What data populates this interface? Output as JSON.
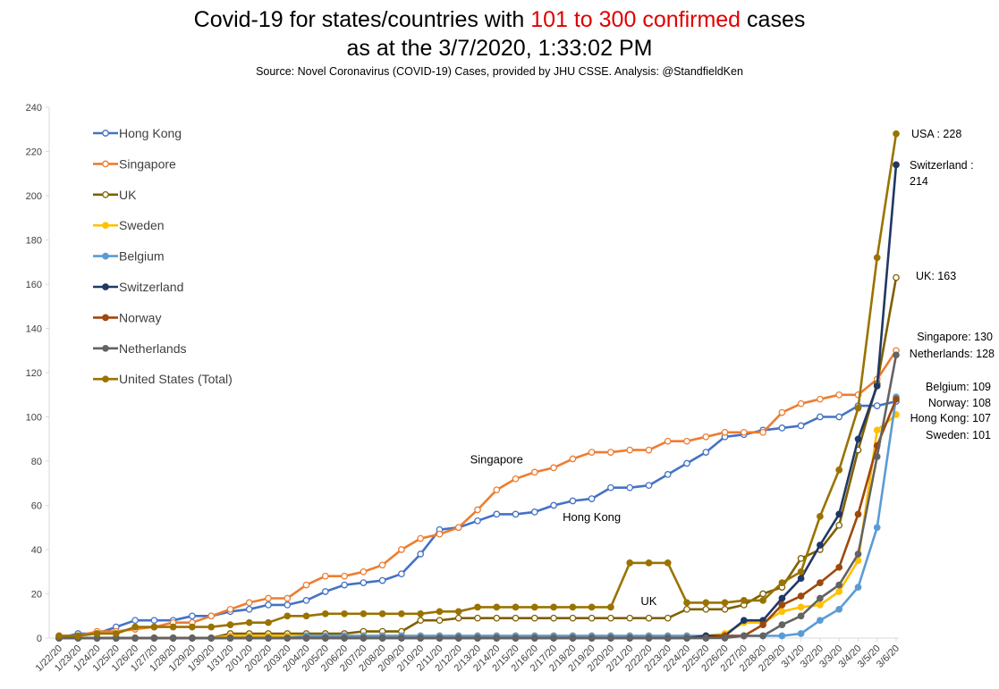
{
  "chart_data": {
    "type": "line",
    "title": {
      "line1_prefix": "Covid-19 for states/countries with ",
      "line1_highlight": "101 to 300 confirmed",
      "line1_suffix": " cases",
      "line2": "as at the 3/7/2020, 1:33:02 PM",
      "highlight_color": "#e00000"
    },
    "subtitle": "Source: Novel Coronavirus (COVID-19) Cases, provided by JHU CSSE.  Analysis: @StandfieldKen",
    "xlabel": "",
    "ylabel": "",
    "ylim": [
      0,
      240
    ],
    "yticks": [
      0,
      20,
      40,
      60,
      80,
      100,
      120,
      140,
      160,
      180,
      200,
      220,
      240
    ],
    "grid": false,
    "legend_position": "top-left",
    "categories": [
      "1/22/20",
      "1/23/20",
      "1/24/20",
      "1/25/20",
      "1/26/20",
      "1/27/20",
      "1/28/20",
      "1/29/20",
      "1/30/20",
      "1/31/20",
      "2/01/20",
      "2/02/20",
      "2/03/20",
      "2/04/20",
      "2/05/20",
      "2/06/20",
      "2/07/20",
      "2/08/20",
      "2/09/20",
      "2/10/20",
      "2/11/20",
      "2/12/20",
      "2/13/20",
      "2/14/20",
      "2/15/20",
      "2/16/20",
      "2/17/20",
      "2/18/20",
      "2/19/20",
      "2/20/20",
      "2/21/20",
      "2/22/20",
      "2/23/20",
      "2/24/20",
      "2/25/20",
      "2/26/20",
      "2/27/20",
      "2/28/20",
      "2/29/20",
      "3/1/20",
      "3/2/20",
      "3/3/20",
      "3/4/20",
      "3/5/20",
      "3/6/20"
    ],
    "series": [
      {
        "name": "Hong Kong",
        "color": "#4472c4",
        "marker": "hollow",
        "values": [
          0,
          2,
          2,
          5,
          8,
          8,
          8,
          10,
          10,
          12,
          13,
          15,
          15,
          17,
          21,
          24,
          25,
          26,
          29,
          38,
          49,
          50,
          53,
          56,
          56,
          57,
          60,
          62,
          63,
          68,
          68,
          69,
          74,
          79,
          84,
          91,
          92,
          94,
          95,
          96,
          100,
          100,
          105,
          105,
          107
        ]
      },
      {
        "name": "Singapore",
        "color": "#ed7d31",
        "marker": "hollow",
        "values": [
          1,
          1,
          3,
          3,
          4,
          5,
          7,
          7,
          10,
          13,
          16,
          18,
          18,
          24,
          28,
          28,
          30,
          33,
          40,
          45,
          47,
          50,
          58,
          67,
          72,
          75,
          77,
          81,
          84,
          84,
          85,
          85,
          89,
          89,
          91,
          93,
          93,
          93,
          102,
          106,
          108,
          110,
          110,
          117,
          130
        ]
      },
      {
        "name": "UK",
        "color": "#7f6000",
        "marker": "hollow",
        "values": [
          0,
          0,
          0,
          0,
          0,
          0,
          0,
          0,
          0,
          2,
          2,
          2,
          2,
          2,
          2,
          2,
          3,
          3,
          3,
          8,
          8,
          9,
          9,
          9,
          9,
          9,
          9,
          9,
          9,
          9,
          9,
          9,
          9,
          13,
          13,
          13,
          15,
          20,
          23,
          36,
          40,
          51,
          85,
          115,
          163
        ]
      },
      {
        "name": "Sweden",
        "color": "#ffc000",
        "marker": "filled",
        "values": [
          0,
          0,
          0,
          0,
          0,
          0,
          0,
          0,
          0,
          1,
          1,
          1,
          1,
          1,
          1,
          1,
          1,
          1,
          1,
          1,
          1,
          1,
          1,
          1,
          1,
          1,
          1,
          1,
          1,
          1,
          1,
          1,
          1,
          1,
          1,
          2,
          7,
          7,
          12,
          14,
          15,
          21,
          35,
          94,
          101
        ]
      },
      {
        "name": "Belgium",
        "color": "#5b9bd5",
        "marker": "filled",
        "values": [
          0,
          0,
          0,
          0,
          0,
          0,
          0,
          0,
          0,
          0,
          0,
          0,
          0,
          1,
          1,
          1,
          1,
          1,
          1,
          1,
          1,
          1,
          1,
          1,
          1,
          1,
          1,
          1,
          1,
          1,
          1,
          1,
          1,
          1,
          1,
          1,
          1,
          1,
          1,
          2,
          8,
          13,
          23,
          50,
          109
        ]
      },
      {
        "name": "Switzerland",
        "color": "#203864",
        "marker": "filled",
        "values": [
          0,
          0,
          0,
          0,
          0,
          0,
          0,
          0,
          0,
          0,
          0,
          0,
          0,
          0,
          0,
          0,
          0,
          0,
          0,
          0,
          0,
          0,
          0,
          0,
          0,
          0,
          0,
          0,
          0,
          0,
          0,
          0,
          0,
          0,
          1,
          1,
          8,
          8,
          18,
          27,
          42,
          56,
          90,
          114,
          214
        ]
      },
      {
        "name": "Norway",
        "color": "#9e480e",
        "marker": "filled",
        "values": [
          0,
          0,
          0,
          0,
          0,
          0,
          0,
          0,
          0,
          0,
          0,
          0,
          0,
          0,
          0,
          0,
          0,
          0,
          0,
          0,
          0,
          0,
          0,
          0,
          0,
          0,
          0,
          0,
          0,
          0,
          0,
          0,
          0,
          0,
          0,
          1,
          1,
          6,
          15,
          19,
          25,
          32,
          56,
          87,
          108
        ]
      },
      {
        "name": "Netherlands",
        "color": "#636363",
        "marker": "filled",
        "values": [
          0,
          0,
          0,
          0,
          0,
          0,
          0,
          0,
          0,
          0,
          0,
          0,
          0,
          0,
          0,
          0,
          0,
          0,
          0,
          0,
          0,
          0,
          0,
          0,
          0,
          0,
          0,
          0,
          0,
          0,
          0,
          0,
          0,
          0,
          0,
          0,
          1,
          1,
          6,
          10,
          18,
          24,
          38,
          82,
          128
        ]
      },
      {
        "name": "United States (Total)",
        "color": "#997300",
        "marker": "filled",
        "values": [
          1,
          1,
          2,
          2,
          5,
          5,
          5,
          5,
          5,
          6,
          7,
          7,
          10,
          10,
          11,
          11,
          11,
          11,
          11,
          11,
          12,
          12,
          14,
          14,
          14,
          14,
          14,
          14,
          14,
          14,
          34,
          34,
          34,
          16,
          16,
          16,
          17,
          17,
          25,
          30,
          55,
          76,
          104,
          172,
          228
        ]
      }
    ],
    "end_labels": [
      {
        "text": "USA : 228",
        "value": 228
      },
      {
        "text": "Switzerland :",
        "value": 214
      },
      {
        "text": "214",
        "value": 214
      },
      {
        "text": "UK: 163",
        "value": 163
      },
      {
        "text": "Singapore: 130",
        "value": 130
      },
      {
        "text": "Netherlands: 128",
        "value": 128
      },
      {
        "text": "Belgium: 109",
        "value": 109
      },
      {
        "text": "Norway: 108",
        "value": 108
      },
      {
        "text": "Hong Kong: 107",
        "value": 107
      },
      {
        "text": "Sweden: 101",
        "value": 101
      }
    ],
    "annotations": [
      {
        "text": "Singapore",
        "category": "2/14/20",
        "value": 79
      },
      {
        "text": "Hong Kong",
        "category": "2/19/20",
        "value": 53
      },
      {
        "text": "UK",
        "category": "2/22/20",
        "value": 15
      }
    ]
  }
}
